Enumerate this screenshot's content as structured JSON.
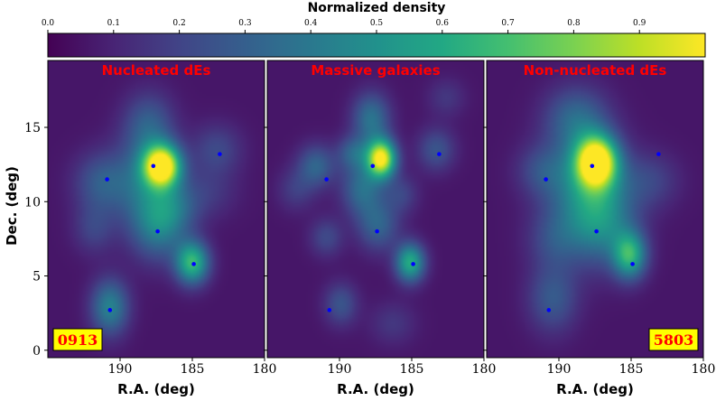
{
  "chart_data": {
    "type": "heatmap",
    "colorbar": {
      "label": "Normalized density",
      "ticks": [
        0.0,
        0.1,
        0.2,
        0.3,
        0.4,
        0.5,
        0.6,
        0.7,
        0.8,
        0.9
      ],
      "tick_labels": [
        "0.0",
        "0.1",
        "0.2",
        "0.3",
        "0.4",
        "0.5",
        "0.6",
        "0.7",
        "0.8",
        "0.9"
      ],
      "range": [
        0,
        1
      ],
      "colormap": "viridis"
    },
    "shared_axes": {
      "xlabel": "R.A. (deg)",
      "ylabel": "Dec. (deg)",
      "xlim": [
        195,
        180
      ],
      "ylim": [
        -0.5,
        19.5
      ],
      "xticks": [
        190,
        185,
        180
      ],
      "xtick_labels": [
        "190",
        "185",
        "180"
      ],
      "yticks": [
        0,
        5,
        10,
        15
      ],
      "ytick_labels": [
        "0",
        "5",
        "10",
        "15"
      ]
    },
    "reference_points": [
      {
        "ra": 190.9,
        "dec": 11.5
      },
      {
        "ra": 187.7,
        "dec": 12.4
      },
      {
        "ra": 187.4,
        "dec": 8.0
      },
      {
        "ra": 184.9,
        "dec": 5.8
      },
      {
        "ra": 183.1,
        "dec": 13.2
      },
      {
        "ra": 190.7,
        "dec": 2.7
      }
    ],
    "panels": [
      {
        "title": "Nucleated dEs",
        "count": "0913",
        "count_corner": "bottom-left",
        "blobs": [
          {
            "ra": 187.1,
            "dec": 12.4,
            "sr": 0.9,
            "sd": 1.0,
            "amp": 1.0
          },
          {
            "ra": 188.3,
            "dec": 11.2,
            "sr": 1.5,
            "sd": 2.2,
            "amp": 0.28
          },
          {
            "ra": 188.0,
            "dec": 15.2,
            "sr": 1.2,
            "sd": 1.5,
            "amp": 0.22
          },
          {
            "ra": 187.3,
            "dec": 8.3,
            "sr": 1.3,
            "sd": 1.6,
            "amp": 0.3
          },
          {
            "ra": 185.0,
            "dec": 5.9,
            "sr": 0.8,
            "sd": 1.0,
            "amp": 0.6
          },
          {
            "ra": 186.2,
            "dec": 9.6,
            "sr": 1.2,
            "sd": 1.2,
            "amp": 0.18
          },
          {
            "ra": 190.7,
            "dec": 2.9,
            "sr": 0.9,
            "sd": 1.3,
            "amp": 0.38
          },
          {
            "ra": 191.3,
            "dec": 11.3,
            "sr": 1.3,
            "sd": 1.4,
            "amp": 0.22
          },
          {
            "ra": 191.8,
            "dec": 8.2,
            "sr": 1.0,
            "sd": 1.2,
            "amp": 0.14
          },
          {
            "ra": 183.3,
            "dec": 13.5,
            "sr": 1.2,
            "sd": 1.2,
            "amp": 0.16
          },
          {
            "ra": 183.9,
            "dec": 10.6,
            "sr": 1.4,
            "sd": 1.2,
            "amp": 0.1
          }
        ]
      },
      {
        "title": "Massive galaxies",
        "count": "",
        "count_corner": "",
        "blobs": [
          {
            "ra": 187.1,
            "dec": 12.9,
            "sr": 0.7,
            "sd": 0.9,
            "amp": 0.95
          },
          {
            "ra": 187.8,
            "dec": 15.6,
            "sr": 0.9,
            "sd": 1.2,
            "amp": 0.32
          },
          {
            "ra": 188.4,
            "dec": 10.9,
            "sr": 1.0,
            "sd": 1.3,
            "amp": 0.3
          },
          {
            "ra": 187.3,
            "dec": 8.4,
            "sr": 1.0,
            "sd": 1.2,
            "amp": 0.25
          },
          {
            "ra": 185.1,
            "dec": 5.9,
            "sr": 0.7,
            "sd": 0.9,
            "amp": 0.55
          },
          {
            "ra": 191.6,
            "dec": 12.4,
            "sr": 0.9,
            "sd": 1.0,
            "amp": 0.26
          },
          {
            "ra": 189.0,
            "dec": 13.3,
            "sr": 0.8,
            "sd": 0.8,
            "amp": 0.24
          },
          {
            "ra": 183.3,
            "dec": 13.5,
            "sr": 0.9,
            "sd": 1.0,
            "amp": 0.2
          },
          {
            "ra": 190.9,
            "dec": 7.6,
            "sr": 0.8,
            "sd": 0.9,
            "amp": 0.16
          },
          {
            "ra": 189.9,
            "dec": 3.1,
            "sr": 0.8,
            "sd": 1.0,
            "amp": 0.2
          },
          {
            "ra": 186.3,
            "dec": 1.8,
            "sr": 1.1,
            "sd": 1.0,
            "amp": 0.1
          },
          {
            "ra": 193.0,
            "dec": 10.8,
            "sr": 0.9,
            "sd": 1.0,
            "amp": 0.12
          },
          {
            "ra": 185.7,
            "dec": 10.5,
            "sr": 0.8,
            "sd": 0.9,
            "amp": 0.14
          },
          {
            "ra": 182.6,
            "dec": 17.0,
            "sr": 0.9,
            "sd": 0.9,
            "amp": 0.1
          }
        ]
      },
      {
        "title": "Non-nucleated dEs",
        "count": "5803",
        "count_corner": "bottom-right",
        "blobs": [
          {
            "ra": 187.4,
            "dec": 12.7,
            "sr": 1.0,
            "sd": 1.2,
            "amp": 1.0
          },
          {
            "ra": 188.2,
            "dec": 11.0,
            "sr": 1.9,
            "sd": 2.4,
            "amp": 0.35
          },
          {
            "ra": 188.8,
            "dec": 15.6,
            "sr": 1.5,
            "sd": 1.5,
            "amp": 0.26
          },
          {
            "ra": 187.0,
            "dec": 8.6,
            "sr": 1.6,
            "sd": 2.0,
            "amp": 0.32
          },
          {
            "ra": 185.1,
            "dec": 6.4,
            "sr": 0.8,
            "sd": 1.1,
            "amp": 0.55
          },
          {
            "ra": 190.3,
            "dec": 7.4,
            "sr": 1.3,
            "sd": 1.4,
            "amp": 0.15
          },
          {
            "ra": 190.4,
            "dec": 3.5,
            "sr": 1.2,
            "sd": 1.6,
            "amp": 0.22
          },
          {
            "ra": 183.7,
            "dec": 11.4,
            "sr": 1.4,
            "sd": 1.3,
            "amp": 0.14
          },
          {
            "ra": 191.2,
            "dec": 12.1,
            "sr": 1.2,
            "sd": 1.2,
            "amp": 0.15
          }
        ]
      }
    ]
  },
  "colors": {
    "title_color": "#ff0000",
    "count_fill": "#ffff00",
    "count_text": "#ff0000",
    "point_color": "#0000ff"
  }
}
